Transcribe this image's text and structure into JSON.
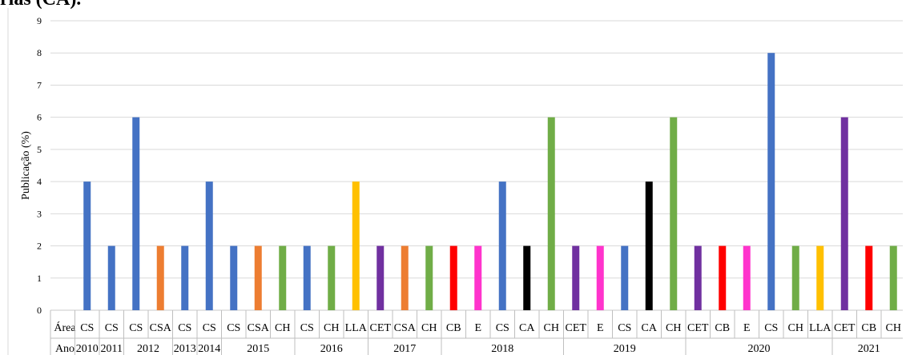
{
  "header_fragment": "rias (CA).",
  "chart_data": {
    "type": "bar",
    "ylabel": "Publicação (%)",
    "ylim": [
      0,
      9
    ],
    "yticks": [
      0,
      1,
      2,
      3,
      4,
      5,
      6,
      7,
      8,
      9
    ],
    "grid": true,
    "legend": "none",
    "row_labels": {
      "area": "Área",
      "year": "Ano"
    },
    "colors": {
      "CS": "#4472C4",
      "CSA": "#ED7D31",
      "CH": "#70AD47",
      "LLA": "#FFC000",
      "CET": "#7030A0",
      "CB": "#FF0000",
      "E": "#FF33CC",
      "CA": "#000000"
    },
    "groups": [
      {
        "year": "2010",
        "bars": [
          {
            "area": "CS",
            "value": 4
          }
        ]
      },
      {
        "year": "2011",
        "bars": [
          {
            "area": "CS",
            "value": 2
          }
        ]
      },
      {
        "year": "2012",
        "bars": [
          {
            "area": "CS",
            "value": 6
          },
          {
            "area": "CSA",
            "value": 2
          }
        ]
      },
      {
        "year": "2013",
        "bars": [
          {
            "area": "CS",
            "value": 2
          }
        ]
      },
      {
        "year": "2014",
        "bars": [
          {
            "area": "CS",
            "value": 4
          }
        ]
      },
      {
        "year": "2015",
        "bars": [
          {
            "area": "CS",
            "value": 2
          },
          {
            "area": "CSA",
            "value": 2
          },
          {
            "area": "CH",
            "value": 2
          }
        ]
      },
      {
        "year": "2016",
        "bars": [
          {
            "area": "CS",
            "value": 2
          },
          {
            "area": "CH",
            "value": 2
          },
          {
            "area": "LLA",
            "value": 4
          }
        ]
      },
      {
        "year": "2017",
        "bars": [
          {
            "area": "CET",
            "value": 2
          },
          {
            "area": "CSA",
            "value": 2
          },
          {
            "area": "CH",
            "value": 2
          }
        ]
      },
      {
        "year": "2018",
        "bars": [
          {
            "area": "CB",
            "value": 2
          },
          {
            "area": "E",
            "value": 2
          },
          {
            "area": "CS",
            "value": 4
          },
          {
            "area": "CA",
            "value": 2
          },
          {
            "area": "CH",
            "value": 6
          }
        ]
      },
      {
        "year": "2019",
        "bars": [
          {
            "area": "CET",
            "value": 2
          },
          {
            "area": "E",
            "value": 2
          },
          {
            "area": "CS",
            "value": 2
          },
          {
            "area": "CA",
            "value": 4
          },
          {
            "area": "CH",
            "value": 6
          }
        ]
      },
      {
        "year": "2020",
        "bars": [
          {
            "area": "CET",
            "value": 2
          },
          {
            "area": "CB",
            "value": 2
          },
          {
            "area": "E",
            "value": 2
          },
          {
            "area": "CS",
            "value": 8
          },
          {
            "area": "CH",
            "value": 2
          },
          {
            "area": "LLA",
            "value": 2
          }
        ]
      },
      {
        "year": "2021",
        "bars": [
          {
            "area": "CET",
            "value": 6
          },
          {
            "area": "CB",
            "value": 2
          },
          {
            "area": "CH",
            "value": 2
          }
        ]
      }
    ]
  }
}
